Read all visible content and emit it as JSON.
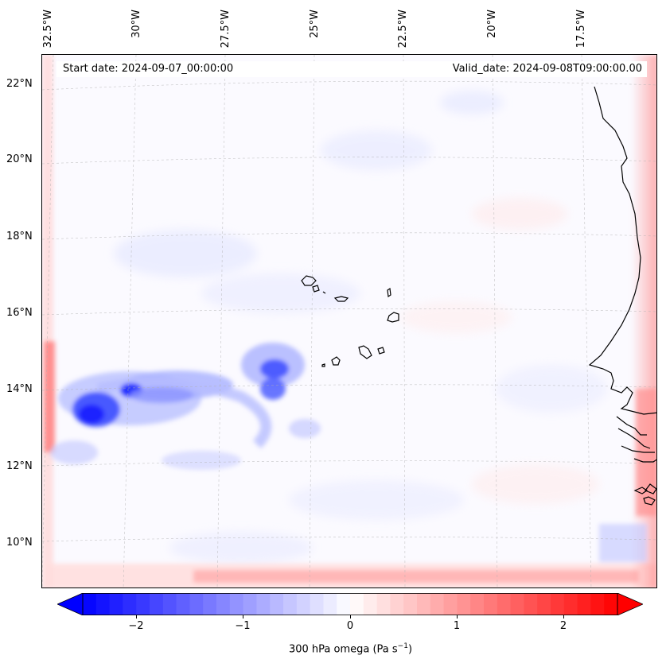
{
  "map": {
    "start_date": "Start date: 2024-09-07_00:00:00",
    "valid_date": "Valid_date: 2024-09-08T09:00:00.00",
    "longitude_labels": [
      "32.5°W",
      "30°W",
      "27.5°W",
      "25°W",
      "22.5°W",
      "20°W",
      "17.5°W"
    ],
    "latitude_labels": [
      "22°N",
      "20°N",
      "18°N",
      "16°N",
      "14°N",
      "12°N",
      "10°N"
    ],
    "variable": "300 hPa omega",
    "colormap": "bwr",
    "colors": {
      "negative": "#0000ff",
      "neutral": "#ffffff",
      "positive": "#ff0000"
    }
  },
  "colorbar": {
    "label_prefix": "300 hPa omega (Pa s",
    "label_exp": "−1",
    "label_suffix": ")",
    "ticks": [
      "−2",
      "−1",
      "0",
      "1",
      "2"
    ],
    "range": [
      -2.75,
      2.75
    ],
    "extend": "both"
  }
}
